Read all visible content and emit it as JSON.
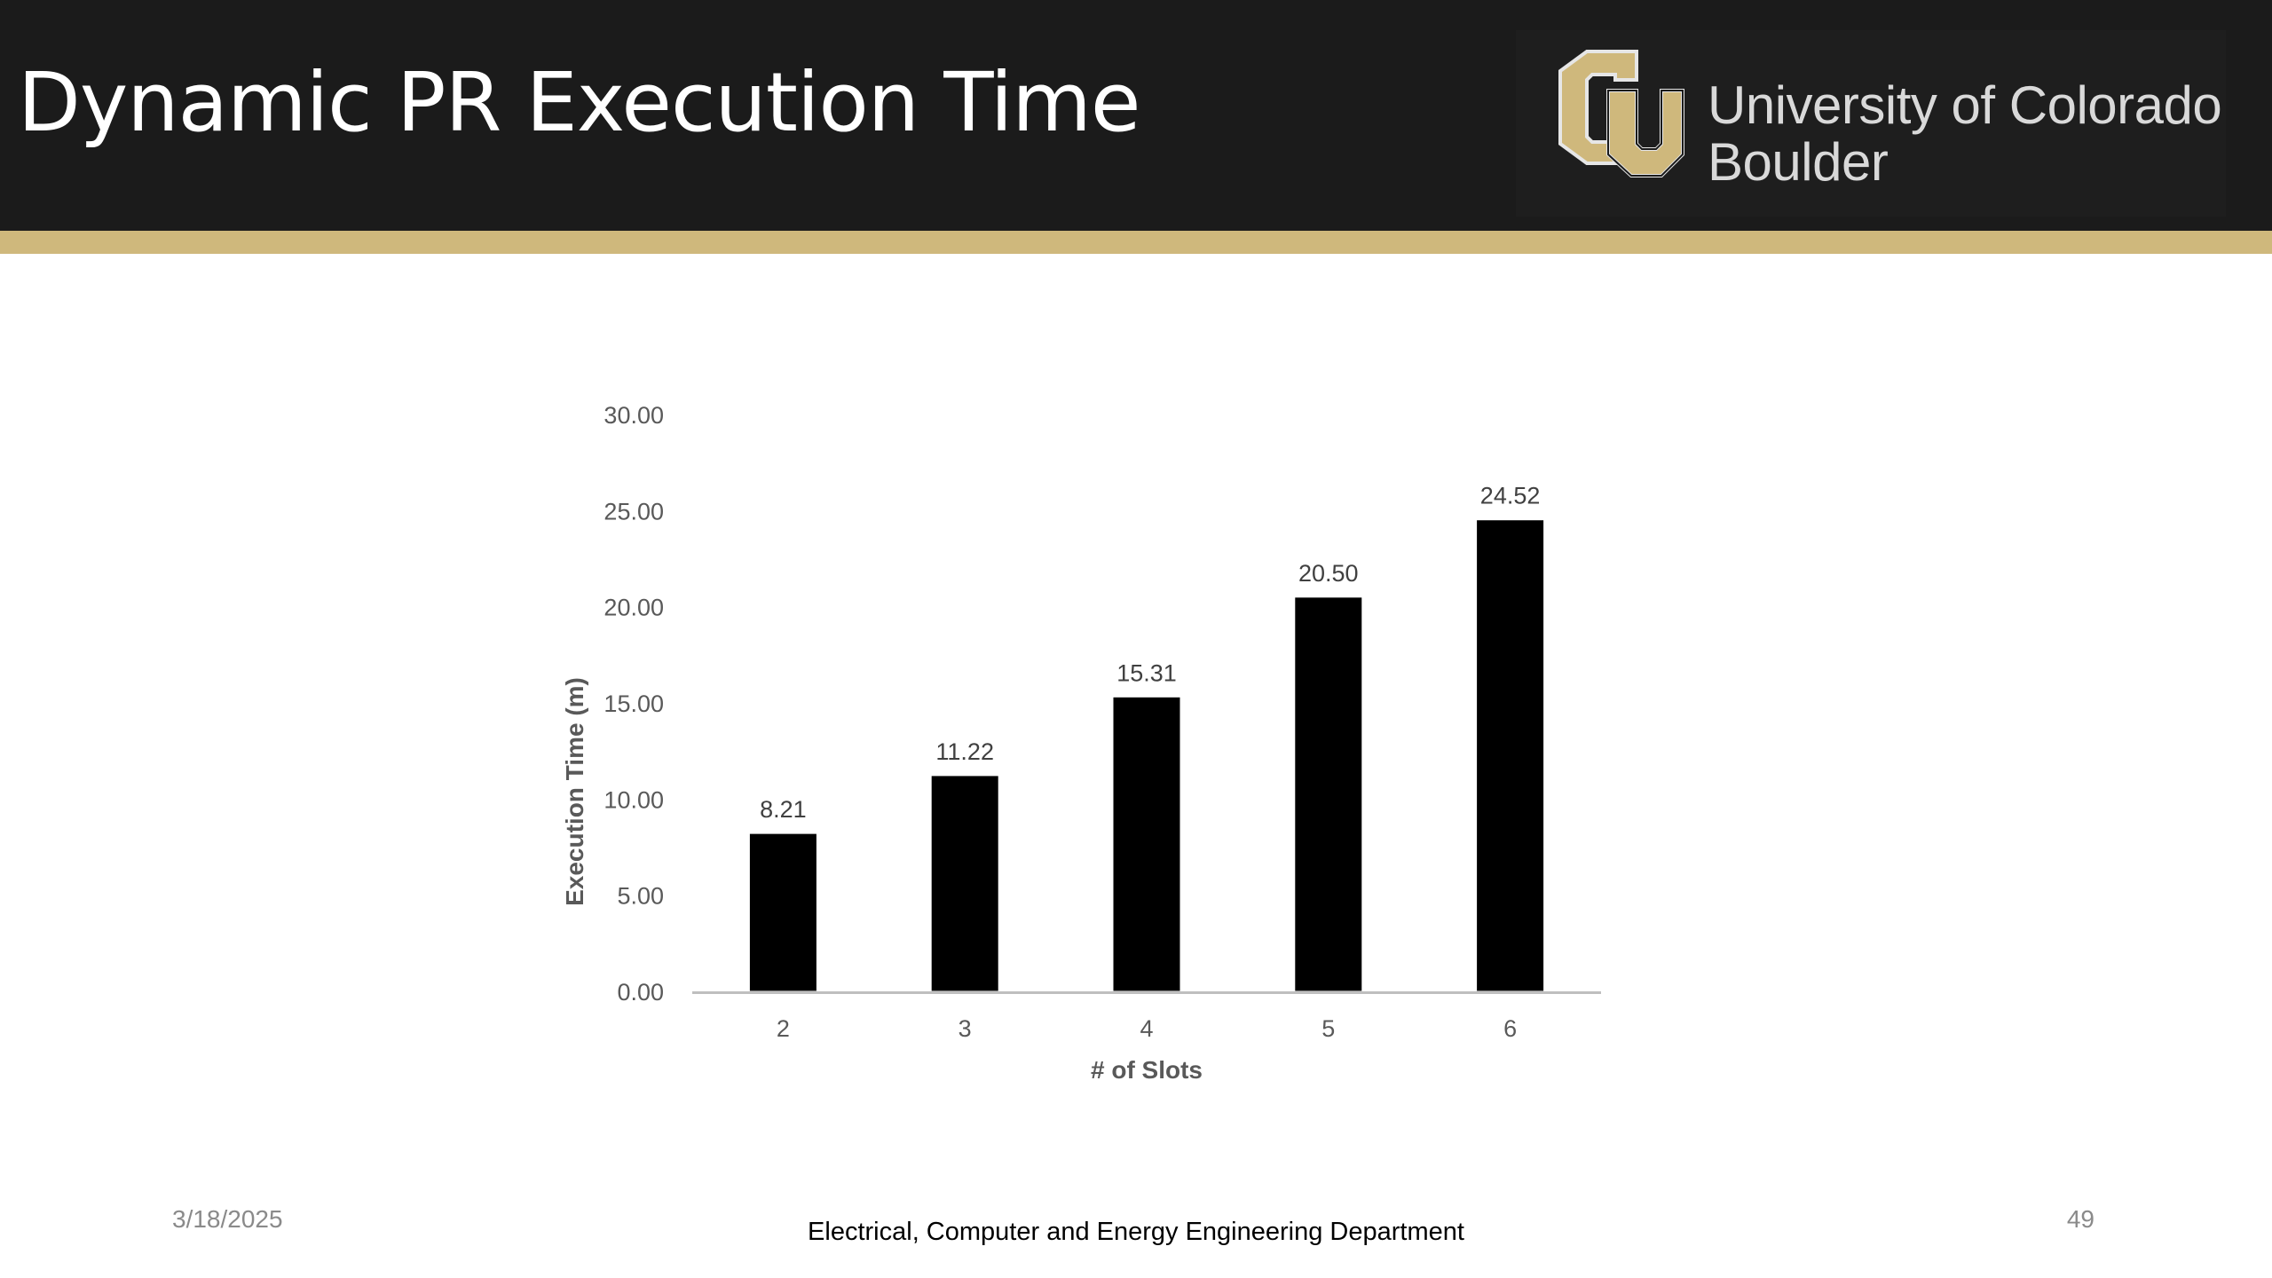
{
  "slide": {
    "title": "Dynamic PR Execution Time",
    "date": "3/18/2025",
    "department": "Electrical, Computer and Energy Engineering Department",
    "page_number": "49"
  },
  "logo": {
    "monogram": "CU",
    "line1": "University of Colorado",
    "line2": "Boulder"
  },
  "colors": {
    "header_bg": "#1b1b1b",
    "gold": "#cfb87c",
    "bar": "#000000",
    "axis_text": "#595959"
  },
  "chart_data": {
    "type": "bar",
    "title": "",
    "xlabel": "# of Slots",
    "ylabel": "Execution Time (m)",
    "categories": [
      "2",
      "3",
      "4",
      "5",
      "6"
    ],
    "values": [
      8.21,
      11.22,
      15.31,
      20.5,
      24.52
    ],
    "data_labels": [
      "8.21",
      "11.22",
      "15.31",
      "20.50",
      "24.52"
    ],
    "ylim": [
      0,
      30
    ],
    "yticks": [
      "0.00",
      "5.00",
      "10.00",
      "15.00",
      "20.00",
      "25.00",
      "30.00"
    ],
    "grid": false,
    "legend": "none"
  }
}
